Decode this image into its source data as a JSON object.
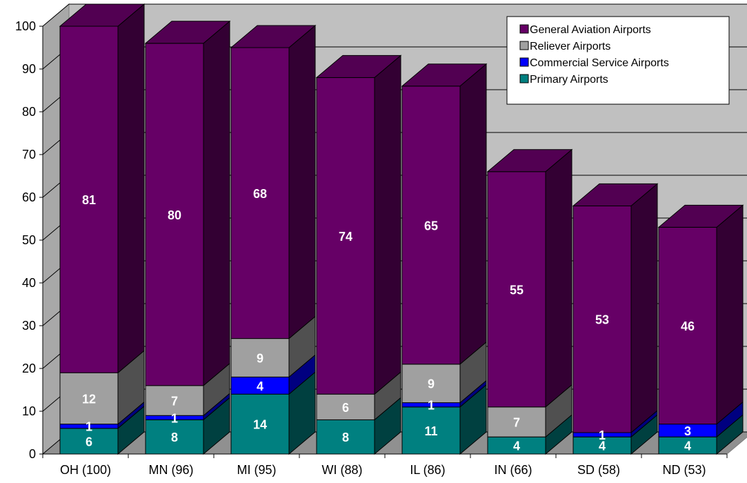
{
  "chart_data": {
    "type": "bar",
    "stacked": true,
    "three_d": true,
    "categories": [
      "OH (100)",
      "MN (96)",
      "MI (95)",
      "WI (88)",
      "IL (86)",
      "IN (66)",
      "SD (58)",
      "ND (53)"
    ],
    "series": [
      {
        "name": "Primary Airports",
        "values": [
          6,
          8,
          14,
          8,
          11,
          4,
          4,
          4
        ],
        "color": "#008080"
      },
      {
        "name": "Commercial Service Airports",
        "values": [
          1,
          1,
          4,
          0,
          1,
          0,
          1,
          3
        ],
        "color": "#0000FF"
      },
      {
        "name": "Reliever Airports",
        "values": [
          12,
          7,
          9,
          6,
          9,
          7,
          0,
          0
        ],
        "color": "#A0A0A0"
      },
      {
        "name": "General Aviation Airports",
        "values": [
          81,
          80,
          68,
          74,
          65,
          55,
          53,
          46
        ],
        "color": "#660066"
      }
    ],
    "labels": {
      "show_zero": [
        [],
        [],
        [],
        [
          true,
          false,
          false,
          false,
          false,
          true,
          false,
          false
        ],
        [],
        [],
        [],
        []
      ]
    },
    "ylim": [
      0,
      100
    ],
    "yticks": [
      "0",
      "10",
      "20",
      "30",
      "40",
      "50",
      "60",
      "70",
      "80",
      "90",
      "100"
    ],
    "grid": true,
    "legend": {
      "position": "top-right",
      "entries": [
        "General Aviation Airports",
        "Reliever Airports",
        "Commercial Service Airports",
        "Primary Airports"
      ]
    },
    "wall_color": "#C0C0C0"
  }
}
